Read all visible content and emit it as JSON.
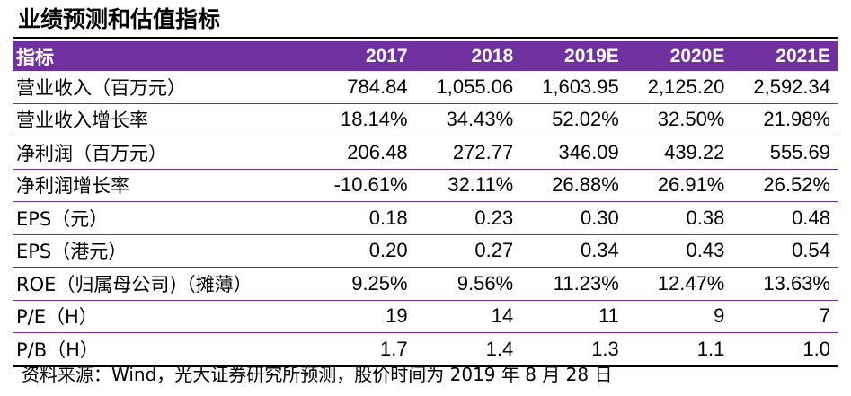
{
  "title": "业绩预测和估值指标",
  "table": {
    "header": [
      "指标",
      "2017",
      "2018",
      "2019E",
      "2020E",
      "2021E"
    ],
    "rows": [
      [
        "营业收入（百万元）",
        "784.84",
        "1,055.06",
        "1,603.95",
        "2,125.20",
        "2,592.34"
      ],
      [
        "营业收入增长率",
        "18.14%",
        "34.43%",
        "52.02%",
        "32.50%",
        "21.98%"
      ],
      [
        "净利润（百万元）",
        "206.48",
        "272.77",
        "346.09",
        "439.22",
        "555.69"
      ],
      [
        "净利润增长率",
        "-10.61%",
        "32.11%",
        "26.88%",
        "26.91%",
        "26.52%"
      ],
      [
        "EPS（元）",
        "0.18",
        "0.23",
        "0.30",
        "0.38",
        "0.48"
      ],
      [
        "EPS（港元）",
        "0.20",
        "0.27",
        "0.34",
        "0.43",
        "0.54"
      ],
      [
        "ROE（归属母公司)（摊薄）",
        "9.25%",
        "9.56%",
        "11.23%",
        "12.47%",
        "13.63%"
      ],
      [
        "P/E（H）",
        "19",
        "14",
        "11",
        "9",
        "7"
      ],
      [
        "P/B（H）",
        "1.7",
        "1.4",
        "1.3",
        "1.1",
        "1.0"
      ]
    ]
  },
  "source": "资料来源：Wind，光大证券研究所预测，股价时间为 2019 年 8 月 28 日",
  "colors": {
    "header_bg": "#7030a0",
    "header_text": "#ffffff"
  }
}
